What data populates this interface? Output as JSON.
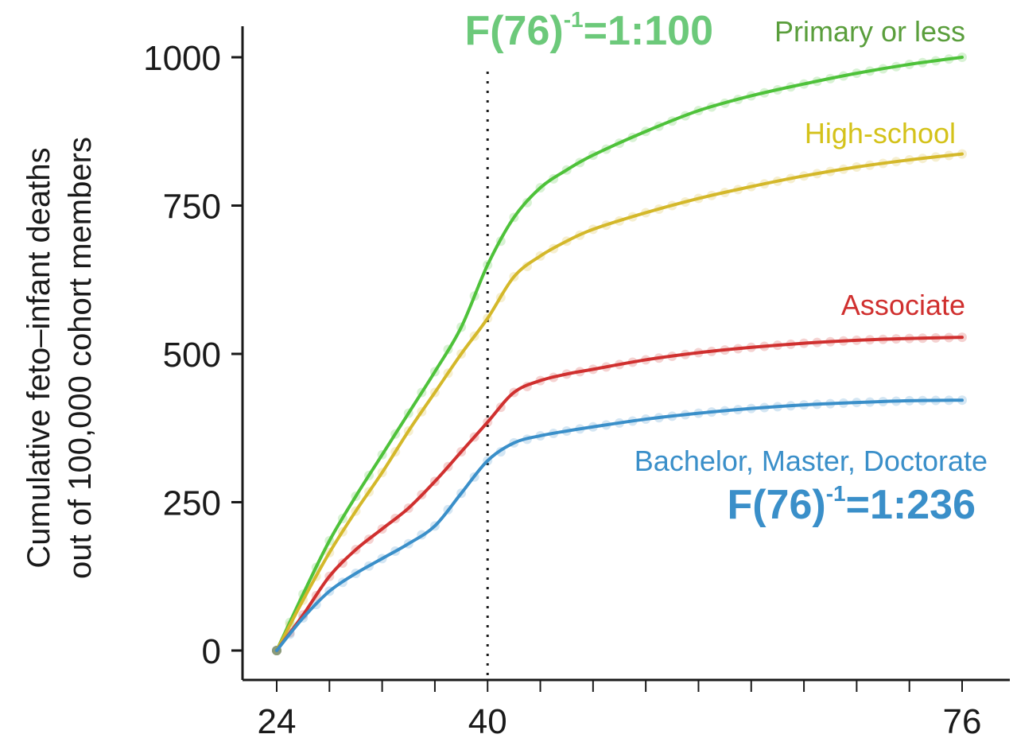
{
  "chart_data": {
    "type": "line",
    "ylabel_line1": "Cumulative feto–infant deaths",
    "ylabel_line2": "out of 100,000 cohort members",
    "xlim": [
      24,
      76
    ],
    "ylim": [
      0,
      1000
    ],
    "x_ticks": [
      24,
      40,
      76
    ],
    "y_ticks": [
      0,
      250,
      500,
      750,
      1000
    ],
    "reference_line_x": 40,
    "grid": false,
    "series": [
      {
        "name": "Primary or less",
        "color": "#4ec23a",
        "x": [
          24,
          26,
          28,
          30,
          32,
          34,
          36,
          38,
          40,
          42,
          44,
          46,
          48,
          52,
          56,
          60,
          64,
          68,
          72,
          76
        ],
        "y": [
          0,
          95,
          185,
          260,
          330,
          400,
          470,
          545,
          650,
          730,
          780,
          810,
          835,
          875,
          910,
          935,
          955,
          973,
          988,
          1000
        ]
      },
      {
        "name": "High-school",
        "color": "#d4b82a",
        "x": [
          24,
          26,
          28,
          30,
          32,
          34,
          36,
          38,
          40,
          42,
          44,
          46,
          48,
          52,
          56,
          60,
          64,
          68,
          72,
          76
        ],
        "y": [
          0,
          85,
          165,
          235,
          300,
          370,
          435,
          500,
          560,
          630,
          665,
          690,
          710,
          738,
          762,
          782,
          800,
          815,
          827,
          837
        ]
      },
      {
        "name": "Associate",
        "color": "#d0302f",
        "x": [
          24,
          26,
          28,
          30,
          32,
          34,
          36,
          38,
          40,
          42,
          44,
          46,
          48,
          52,
          56,
          60,
          64,
          68,
          72,
          76
        ],
        "y": [
          0,
          60,
          125,
          170,
          205,
          240,
          285,
          335,
          385,
          435,
          455,
          466,
          474,
          490,
          502,
          511,
          518,
          523,
          526,
          528
        ]
      },
      {
        "name": "Bachelor, Master, Doctorate",
        "color": "#3a8fc9",
        "x": [
          24,
          26,
          28,
          30,
          32,
          34,
          36,
          38,
          40,
          42,
          44,
          46,
          48,
          52,
          56,
          60,
          64,
          68,
          72,
          76
        ],
        "y": [
          0,
          55,
          100,
          130,
          155,
          180,
          210,
          265,
          320,
          350,
          362,
          370,
          377,
          390,
          400,
          408,
          414,
          418,
          421,
          422
        ]
      }
    ],
    "annotations": {
      "top": {
        "text": "F(76)",
        "sup": "-1",
        "tail": "=1:100",
        "color": "#6cc97a"
      },
      "bottom": {
        "text": "F(76)",
        "sup": "-1",
        "tail": "=1:236",
        "color": "#3a8fc9"
      }
    }
  }
}
